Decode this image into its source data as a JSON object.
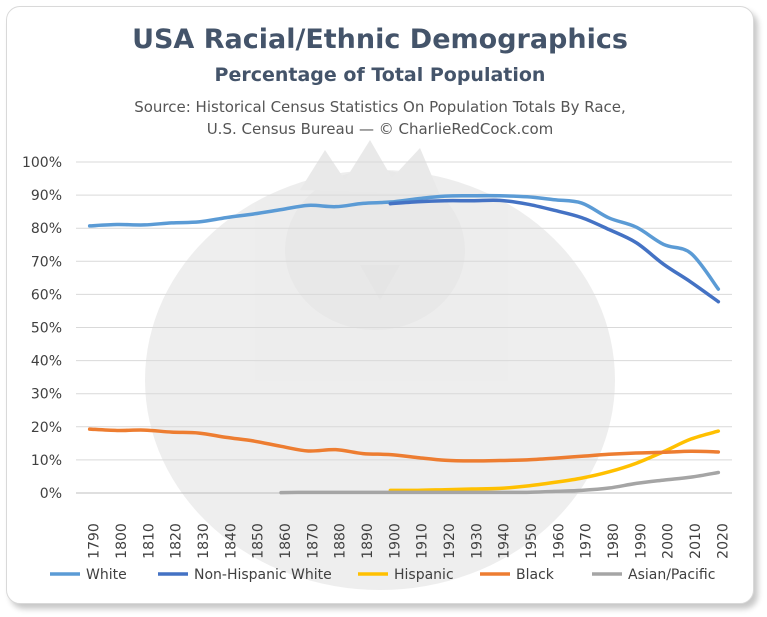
{
  "chart_data": {
    "type": "line",
    "title": "USA Racial/Ethnic Demographics",
    "subtitle": "Percentage of Total Population",
    "source_line1": "Source: Historical Census Statistics On Population Totals By Race,",
    "source_line2": "U.S. Census Bureau — © CharlieRedCock.com",
    "xlabel": "",
    "ylabel": "",
    "ylim": [
      0,
      100
    ],
    "y_ticks": [
      "0%",
      "10%",
      "20%",
      "30%",
      "40%",
      "50%",
      "60%",
      "70%",
      "80%",
      "90%",
      "100%"
    ],
    "x": [
      "1790",
      "1800",
      "1810",
      "1820",
      "1830",
      "1840",
      "1850",
      "1860",
      "1870",
      "1880",
      "1890",
      "1900",
      "1910",
      "1920",
      "1930",
      "1940",
      "1950",
      "1960",
      "1970",
      "1980",
      "1990",
      "2000",
      "2010",
      "2020"
    ],
    "grid": true,
    "legend_position": "bottom",
    "series": [
      {
        "name": "White",
        "color": "#5b9bd5",
        "values": [
          80.7,
          81.1,
          81.0,
          81.6,
          81.9,
          83.2,
          84.3,
          85.6,
          86.9,
          86.5,
          87.5,
          87.9,
          88.9,
          89.7,
          89.8,
          89.8,
          89.5,
          88.6,
          87.6,
          83.1,
          80.3,
          75.1,
          72.4,
          61.6
        ]
      },
      {
        "name": "Non-Hispanic White",
        "color": "#4472c4",
        "values": [
          null,
          null,
          null,
          null,
          null,
          null,
          null,
          null,
          null,
          null,
          null,
          87.4,
          88.0,
          88.3,
          88.3,
          88.4,
          87.3,
          85.4,
          83.2,
          79.6,
          75.6,
          69.1,
          63.7,
          57.8
        ]
      },
      {
        "name": "Hispanic",
        "color": "#ffc000",
        "values": [
          null,
          null,
          null,
          null,
          null,
          null,
          null,
          null,
          null,
          null,
          null,
          0.8,
          0.8,
          1.0,
          1.2,
          1.4,
          2.1,
          3.2,
          4.5,
          6.4,
          9.0,
          12.5,
          16.3,
          18.7
        ]
      },
      {
        "name": "Black",
        "color": "#ed7d31",
        "values": [
          19.3,
          18.9,
          19.0,
          18.4,
          18.1,
          16.8,
          15.7,
          14.1,
          12.7,
          13.1,
          11.9,
          11.6,
          10.7,
          9.9,
          9.7,
          9.8,
          10.0,
          10.5,
          11.1,
          11.7,
          12.1,
          12.3,
          12.6,
          12.4
        ]
      },
      {
        "name": "Asian/Pacific",
        "color": "#a5a5a5",
        "values": [
          null,
          null,
          null,
          null,
          null,
          null,
          null,
          0.1,
          0.2,
          0.2,
          0.2,
          0.2,
          0.2,
          0.2,
          0.2,
          0.2,
          0.2,
          0.5,
          0.8,
          1.5,
          2.9,
          3.9,
          4.8,
          6.2
        ]
      }
    ]
  }
}
